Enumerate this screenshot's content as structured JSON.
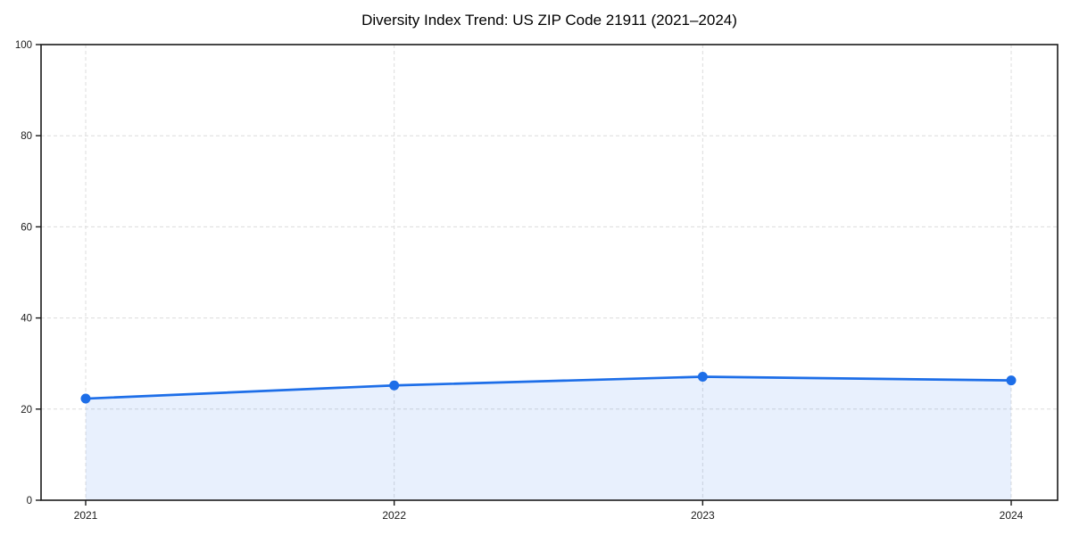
{
  "chart_data": {
    "type": "line",
    "title": "Diversity Index Trend: US ZIP Code 21911 (2021–2024)",
    "x": [
      "2021",
      "2022",
      "2023",
      "2024"
    ],
    "values": [
      22.3,
      25.2,
      27.1,
      26.3
    ],
    "xlabel": "",
    "ylabel": "",
    "ylim": [
      0,
      100
    ],
    "yticks": [
      0,
      20,
      40,
      60,
      80,
      100
    ],
    "grid": "dashed, horizontal and vertical at ticks",
    "legend": "none",
    "area_fill": true,
    "markers": "filled circles",
    "colors": {
      "line": "#1d6ee8",
      "marker": "#1d6ee8",
      "fill": "#1d6ee8",
      "fill_opacity": 0.1,
      "grid": "#dcdcdc",
      "spine": "#1a1a1a",
      "tick_label": "#1a1a1a",
      "title": "#000000",
      "background": "#ffffff"
    }
  }
}
